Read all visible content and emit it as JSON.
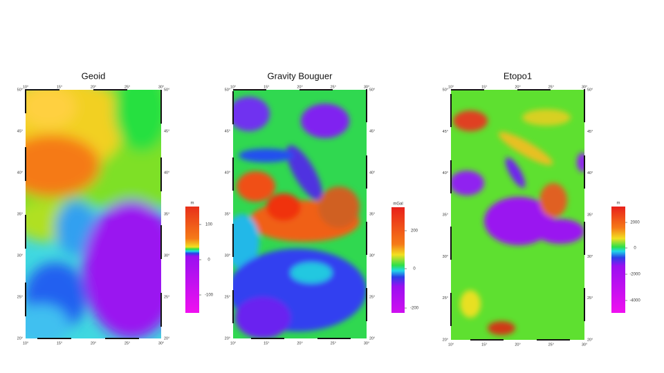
{
  "maps": [
    {
      "title": "Geoid",
      "x_labels": [
        "10°",
        "15°",
        "20°",
        "25°",
        "30°"
      ],
      "y_labels": [
        "50°",
        "45°",
        "40°",
        "35°",
        "30°",
        "25°",
        "20°"
      ],
      "colorbar": {
        "unit": "m",
        "ticks": [
          "100",
          "0",
          "-100"
        ]
      }
    },
    {
      "title": "Gravity Bouguer",
      "x_labels": [
        "10°",
        "15°",
        "20°",
        "25°",
        "30°"
      ],
      "y_labels": [
        "50°",
        "45°",
        "40°",
        "35°",
        "30°",
        "25°",
        "20°"
      ],
      "colorbar": {
        "unit": "mGal",
        "ticks": [
          "200",
          "0",
          "-200"
        ]
      }
    },
    {
      "title": "Etopo1",
      "x_labels": [
        "10°",
        "15°",
        "20°",
        "25°",
        "30°"
      ],
      "y_labels": [
        "50°",
        "45°",
        "40°",
        "35°",
        "30°",
        "25°",
        "20°"
      ],
      "colorbar": {
        "unit": "m",
        "ticks": [
          "2000",
          "0",
          "-2000",
          "-4000"
        ]
      }
    }
  ]
}
